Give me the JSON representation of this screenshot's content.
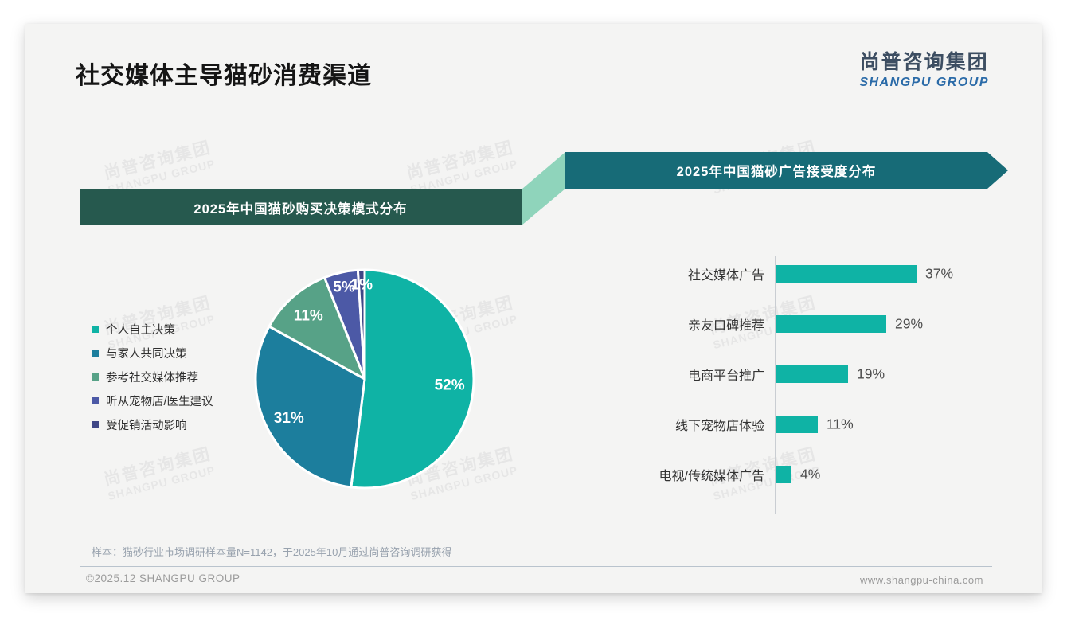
{
  "page": {
    "title": "社交媒体主导猫砂消费渠道",
    "logo": {
      "zh": "尚普咨询集团",
      "en": "SHANGPU GROUP"
    },
    "watermark": {
      "zh": "尚普咨询集团",
      "en": "SHANGPU GROUP"
    },
    "source_note": "样本：猫砂行业市场调研样本量N=1142，于2025年10月通过尚普咨询调研获得",
    "copyright": "©2025.12 SHANGPU GROUP",
    "website": "www.shangpu-china.com"
  },
  "theme": {
    "card_bg": "#f4f4f3",
    "banner_left_bg": "#26594e",
    "banner_right_bg": "#176b77",
    "connector": "#8fd4bb",
    "accent_teal": "#0fb3a5"
  },
  "chart_data": [
    {
      "type": "pie",
      "title": "2025年中国猫砂购买决策模式分布",
      "unit": "%",
      "labels": [
        "个人自主决策",
        "与家人共同决策",
        "参考社交媒体推荐",
        "听从宠物店/医生建议",
        "受促销活动影响"
      ],
      "values": [
        52,
        31,
        11,
        5,
        1
      ],
      "colors": [
        "#0fb3a5",
        "#1c7e9d",
        "#57a287",
        "#4c59a6",
        "#3f4786"
      ],
      "legend_position": "left",
      "start_angle_deg": 0,
      "direction": "clockwise",
      "label_color": "#ffffff"
    },
    {
      "type": "bar",
      "title": "2025年中国猫砂广告接受度分布",
      "orientation": "horizontal",
      "unit": "%",
      "categories": [
        "社交媒体广告",
        "亲友口碑推荐",
        "电商平台推广",
        "线下宠物店体验",
        "电视/传统媒体广告"
      ],
      "values": [
        37,
        29,
        19,
        11,
        4
      ],
      "bar_color": "#0fb3a5",
      "xlim": [
        0,
        40
      ],
      "grid": false,
      "value_label_position": "end"
    }
  ]
}
